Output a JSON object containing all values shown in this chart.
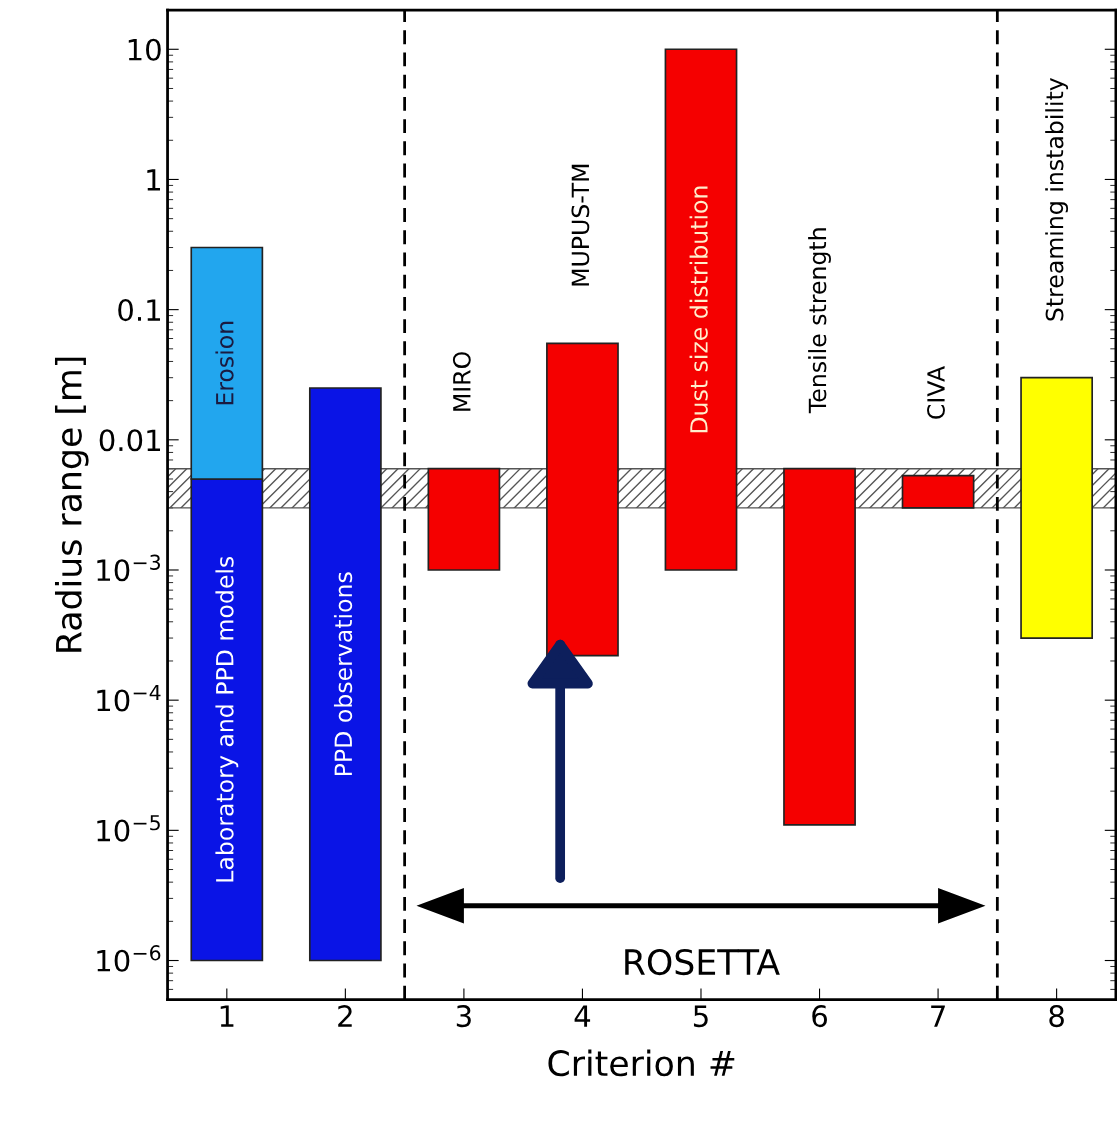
{
  "chart_data": {
    "type": "bar",
    "xlabel": "Criterion #",
    "ylabel": "Radius range [m]",
    "log": "y",
    "xlim": [
      0.5,
      8.5
    ],
    "xticks": [
      1,
      2,
      3,
      4,
      5,
      6,
      7,
      8
    ],
    "ylim": [
      5e-07,
      20
    ],
    "yticks": [
      {
        "value": 1e-06,
        "label": "10$^{−6}$"
      },
      {
        "value": 1e-05,
        "label": "10$^{−5}$"
      },
      {
        "value": 0.0001,
        "label": "10$^{−4}$"
      },
      {
        "value": 0.001,
        "label": "10$^{−3}$"
      },
      0.01,
      0.1,
      1,
      10
    ],
    "series": [
      {
        "name": "Laboratory and PPD models",
        "x": [
          1
        ],
        "base": [
          1e-06
        ],
        "values": [
          0.004999
        ],
        "color": "#0a14e6"
      },
      {
        "name": "Erosion",
        "x": [
          1
        ],
        "base": [
          0.005
        ],
        "values": [
          0.295
        ],
        "color": "#22a6ee"
      },
      {
        "name": "PPD observations",
        "x": [
          2
        ],
        "base": [
          1e-06
        ],
        "values": [
          0.024999
        ],
        "color": "#0a14e6"
      },
      {
        "name": "MIRO",
        "x": [
          3
        ],
        "base": [
          0.001
        ],
        "values": [
          0.005
        ],
        "color": "#f50000"
      },
      {
        "name": "MUPUS-TM",
        "x": [
          4
        ],
        "base": [
          0.00022
        ],
        "values": [
          0.05478
        ],
        "color": "#f50000"
      },
      {
        "name": "Dust size distribution",
        "x": [
          5
        ],
        "base": [
          0.001
        ],
        "values": [
          9.999
        ],
        "color": "#f50000"
      },
      {
        "name": "Tensile strength",
        "x": [
          6
        ],
        "base": [
          1.1e-05
        ],
        "values": [
          0.005989
        ],
        "color": "#f50000"
      },
      {
        "name": "CIVA",
        "x": [
          7
        ],
        "base": [
          0.003
        ],
        "values": [
          0.0023
        ],
        "color": "#f50000"
      },
      {
        "name": "Streaming instability",
        "x": [
          8
        ],
        "base": [
          0.0003
        ],
        "values": [
          0.0297
        ],
        "color": "#ffff00"
      }
    ],
    "bands": [
      {
        "axis": "y",
        "from": 0.003,
        "to": 0.006,
        "color": "#555555"
      }
    ],
    "annotations": [
      "ROSETTA"
    ],
    "ref_lines": [
      {
        "axis": "x",
        "value": 2.5,
        "color": "#000000",
        "line_style": "dashed"
      },
      {
        "axis": "x",
        "value": 7.5,
        "color": "#000000",
        "line_style": "dashed"
      }
    ]
  }
}
